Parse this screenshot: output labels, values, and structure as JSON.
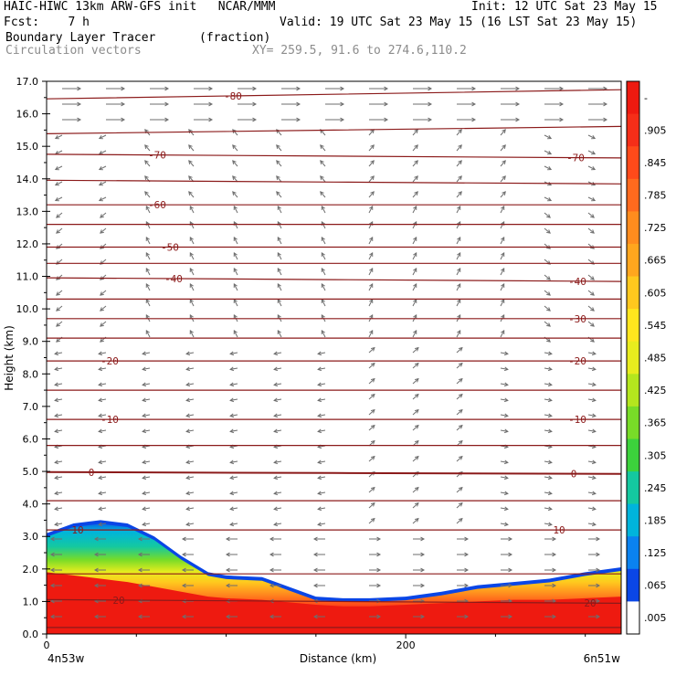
{
  "header": {
    "line1_left": "HAIC-HIWC 13km ARW-GFS init   NCAR/MMM",
    "line1_right": "Init: 12 UTC Sat 23 May 15",
    "line2_left": "Fcst:    7 h",
    "line2_right": "Valid: 19 UTC Sat 23 May 15 (16 LST Sat 23 May 15)",
    "line3_left": "Boundary Layer Tracer",
    "line3_unit": "(fraction)",
    "line4_left": "Circulation vectors",
    "line4_xy": "XY= 259.5, 91.6 to 274.6,110.2"
  },
  "colors": {
    "contour": "#8b1a1a",
    "vector": "#6e6e6e",
    "tracer_high": "#ee1a10"
  },
  "chart_data": {
    "type": "area",
    "ylabel": "Height (km)",
    "xlabel": "Distance (km)",
    "x_tick_labels": [
      "0",
      "200"
    ],
    "x_end_labels": [
      "4n53w",
      "6n51w"
    ],
    "ylim": [
      0,
      17
    ],
    "y_ticks": [
      "0.0",
      "1.0",
      "2.0",
      "3.0",
      "4.0",
      "5.0",
      "6.0",
      "7.0",
      "8.0",
      "9.0",
      "10.0",
      "11.0",
      "12.0",
      "13.0",
      "14.0",
      "15.0",
      "16.0",
      "17.0"
    ],
    "colorbar": {
      "labels": [
        "-",
        ".905",
        ".845",
        ".785",
        ".725",
        ".665",
        ".605",
        ".545",
        ".485",
        ".425",
        ".365",
        ".305",
        ".245",
        ".185",
        ".125",
        ".065",
        ".005"
      ],
      "colors": [
        "#ee1a10",
        "#f52e18",
        "#ff4a1a",
        "#ff6a1e",
        "#ff8c1e",
        "#ffa61e",
        "#ffc81e",
        "#ffe61e",
        "#e8ec1e",
        "#b4e61e",
        "#78dc28",
        "#3cd23c",
        "#14c8a0",
        "#00b4dc",
        "#0a82f0",
        "#0a46e6",
        "#ffffff"
      ]
    },
    "tracer_top_km": {
      "x_km": [
        0,
        15,
        30,
        45,
        60,
        75,
        90,
        100,
        120,
        150,
        165,
        180,
        200,
        220,
        240,
        260,
        280,
        300,
        320
      ],
      "outer": [
        3.1,
        3.4,
        3.5,
        3.4,
        3.0,
        2.4,
        1.9,
        1.8,
        1.75,
        1.15,
        1.1,
        1.1,
        1.15,
        1.3,
        1.5,
        1.6,
        1.7,
        1.9,
        2.05
      ],
      "yellow": [
        2.6,
        2.8,
        2.7,
        2.5,
        2.2,
        1.8,
        1.5,
        1.4,
        1.35,
        1.0,
        0.95,
        0.95,
        1.0,
        1.1,
        1.25,
        1.3,
        1.35,
        1.45,
        1.55
      ],
      "red": [
        1.9,
        1.8,
        1.7,
        1.6,
        1.45,
        1.3,
        1.15,
        1.1,
        1.05,
        0.9,
        0.85,
        0.85,
        0.9,
        0.95,
        1.0,
        1.05,
        1.05,
        1.1,
        1.15
      ]
    },
    "temperature_contours": [
      {
        "label": "-80",
        "km": 16.6,
        "tilt": 0.25
      },
      {
        "label": "",
        "km": 15.5,
        "tilt": 0.2
      },
      {
        "label": "-70",
        "km": 14.7,
        "tilt": -0.1
      },
      {
        "label": "",
        "km": 13.9,
        "tilt": -0.1
      },
      {
        "label": "-60",
        "km": 13.2,
        "tilt": 0.0
      },
      {
        "label": "",
        "km": 12.6,
        "tilt": 0.0
      },
      {
        "label": "-50",
        "km": 11.9,
        "tilt": 0.0
      },
      {
        "label": "",
        "km": 11.4,
        "tilt": 0.0
      },
      {
        "label": "-40",
        "km": 10.9,
        "tilt": -0.1
      },
      {
        "label": "",
        "km": 10.3,
        "tilt": 0.0
      },
      {
        "label": "-30",
        "km": 9.7,
        "tilt": 0.0
      },
      {
        "label": "",
        "km": 9.1,
        "tilt": 0.0
      },
      {
        "label": "-20",
        "km": 8.4,
        "tilt": 0.0
      },
      {
        "label": "",
        "km": 7.5,
        "tilt": 0.0
      },
      {
        "label": "-10",
        "km": 6.6,
        "tilt": 0.0
      },
      {
        "label": "",
        "km": 5.8,
        "tilt": 0.0
      },
      {
        "label": "0",
        "km": 4.95,
        "tilt": -0.05
      },
      {
        "label": "",
        "km": 4.1,
        "tilt": 0.0
      },
      {
        "label": "10",
        "km": 3.2,
        "tilt": 0.0
      },
      {
        "label": "",
        "km": 1.85,
        "tilt": 0.0
      },
      {
        "label": "20",
        "km": 1.0,
        "tilt": -0.1
      },
      {
        "label": "",
        "km": 0.2,
        "tilt": 0.0
      }
    ]
  }
}
